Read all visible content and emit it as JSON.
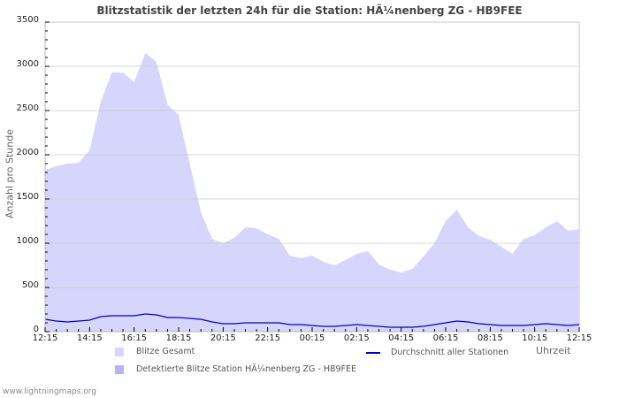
{
  "title": "Blitzstatistik der letzten 24h für die Station: HÃ¼nenberg ZG - HB9FEE",
  "footer": "www.lightningmaps.org",
  "colors": {
    "total_fill": "#d6d6fc",
    "station_fill": "#b4b4f4",
    "average_line": "#0000cc",
    "grid": "#c8c8c8"
  },
  "legend": {
    "total": "Blitze Gesamt",
    "station": "Detektierte Blitze Station HÃ¼nenberg ZG - HB9FEE",
    "average": "Durchschnitt aller Stationen"
  },
  "axes": {
    "ylabel": "Anzahl pro Stunde",
    "xlabel": "Uhrzeit",
    "yticks": [
      "3500",
      "3000",
      "2500",
      "2000",
      "1500",
      "1000",
      "500",
      "0"
    ],
    "xticks": [
      "12:15",
      "14:15",
      "16:15",
      "18:15",
      "20:15",
      "22:15",
      "00:15",
      "02:15",
      "04:15",
      "06:15",
      "08:15",
      "10:15",
      "12:15"
    ]
  },
  "chart_data": {
    "type": "area",
    "title": "Blitzstatistik der letzten 24h für die Station: HÃ¼nenberg ZG - HB9FEE",
    "xlabel": "Uhrzeit",
    "ylabel": "Anzahl pro Stunde",
    "ylim": [
      0,
      3500
    ],
    "grid": true,
    "legend_position": "bottom",
    "x": [
      "12:15",
      "12:45",
      "13:15",
      "13:45",
      "14:15",
      "14:45",
      "15:15",
      "15:45",
      "16:15",
      "16:45",
      "17:15",
      "17:45",
      "18:15",
      "18:45",
      "19:15",
      "19:45",
      "20:15",
      "20:45",
      "21:15",
      "21:45",
      "22:15",
      "22:45",
      "23:15",
      "23:45",
      "00:15",
      "00:45",
      "01:15",
      "01:45",
      "02:15",
      "02:45",
      "03:15",
      "03:45",
      "04:15",
      "04:45",
      "05:15",
      "05:45",
      "06:15",
      "06:45",
      "07:15",
      "07:45",
      "08:15",
      "08:45",
      "09:15",
      "09:45",
      "10:15",
      "10:45",
      "11:15",
      "11:45",
      "12:15"
    ],
    "series": [
      {
        "name": "Blitze Gesamt",
        "type": "area",
        "values": [
          1830,
          1870,
          1900,
          1910,
          2050,
          2600,
          2930,
          2930,
          2820,
          3150,
          3050,
          2570,
          2450,
          1900,
          1350,
          1050,
          1000,
          1060,
          1180,
          1170,
          1100,
          1050,
          860,
          830,
          860,
          790,
          750,
          810,
          880,
          910,
          760,
          700,
          670,
          710,
          850,
          1000,
          1250,
          1380,
          1180,
          1080,
          1040,
          960,
          880,
          1050,
          1090,
          1180,
          1250,
          1140,
          1160
        ]
      },
      {
        "name": "Detektierte Blitze Station HÃ¼nenberg ZG - HB9FEE",
        "type": "area",
        "values": [
          0,
          0,
          0,
          0,
          0,
          0,
          0,
          0,
          0,
          0,
          0,
          0,
          0,
          0,
          0,
          0,
          0,
          0,
          0,
          0,
          0,
          0,
          0,
          0,
          0,
          0,
          0,
          0,
          0,
          0,
          0,
          0,
          0,
          0,
          0,
          0,
          0,
          0,
          0,
          0,
          0,
          0,
          0,
          0,
          0,
          0,
          0,
          0,
          0
        ]
      },
      {
        "name": "Durchschnitt aller Stationen",
        "type": "line",
        "values": [
          140,
          120,
          110,
          120,
          130,
          170,
          180,
          180,
          180,
          200,
          190,
          160,
          160,
          150,
          140,
          110,
          90,
          90,
          100,
          100,
          100,
          100,
          80,
          80,
          70,
          60,
          60,
          70,
          80,
          70,
          60,
          50,
          50,
          50,
          60,
          80,
          100,
          120,
          110,
          90,
          80,
          70,
          70,
          70,
          80,
          90,
          80,
          70,
          80
        ]
      }
    ]
  }
}
